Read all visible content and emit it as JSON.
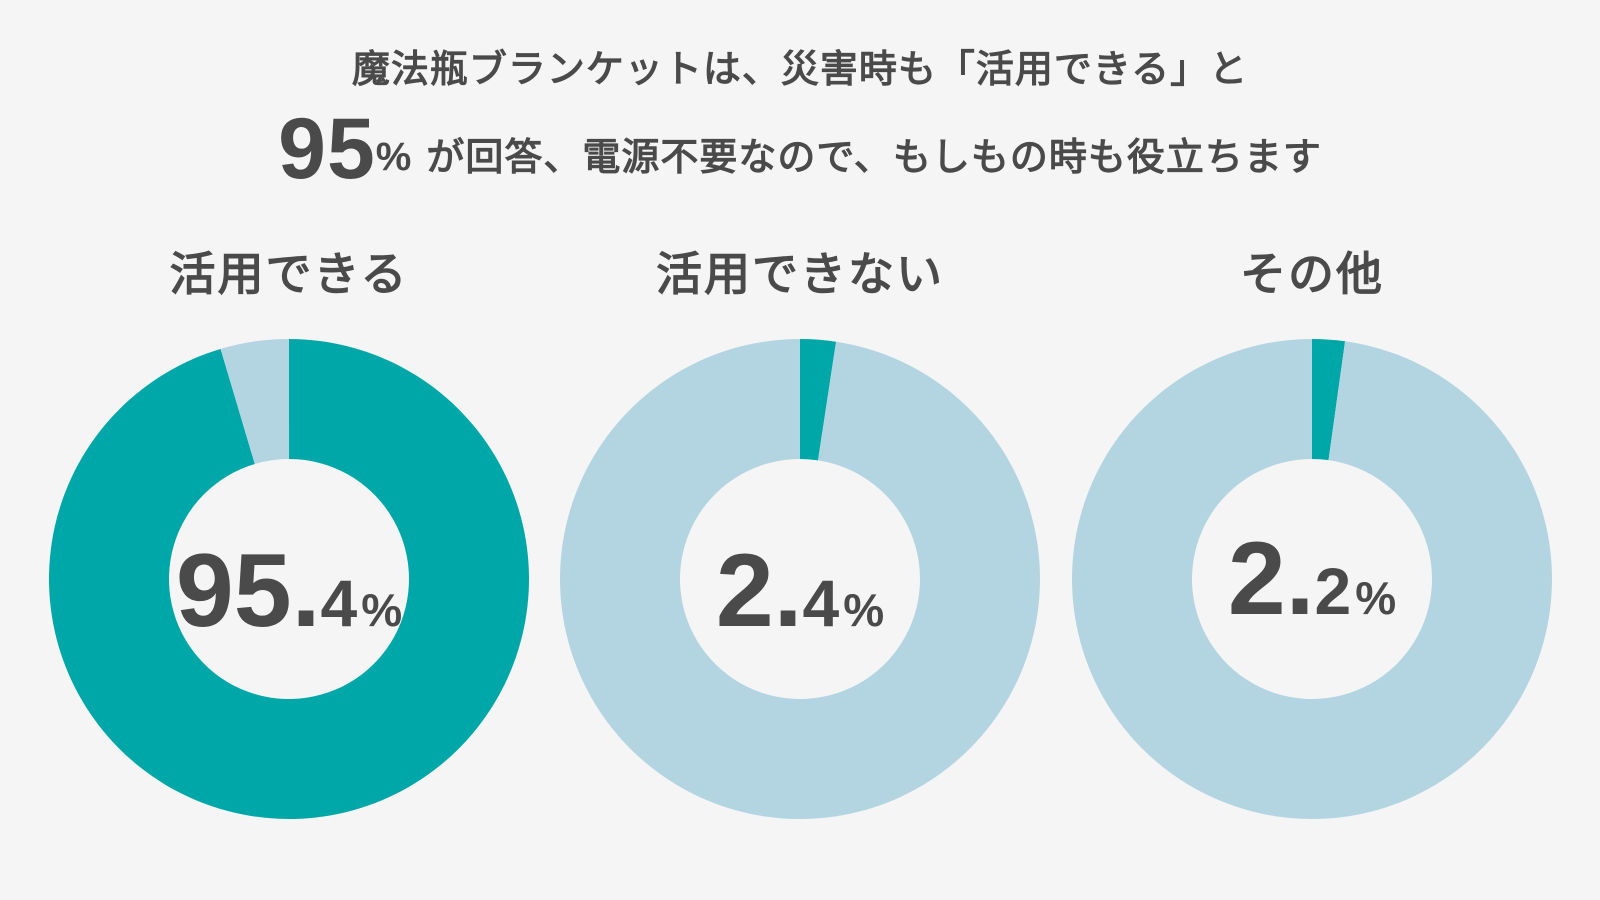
{
  "headline": {
    "line1": "魔法瓶ブランケットは、災害時も「活用できる」と",
    "big_number": "95",
    "big_unit": "%",
    "line2_rest": "が回答、電源不要なので、もしもの時も役立ちます"
  },
  "colors": {
    "accent": "#00a7a8",
    "remainder": "#b3d5e1",
    "text": "#4a4a4a",
    "background": "#f5f5f5"
  },
  "chart_data": [
    {
      "type": "pie",
      "title": "活用できる",
      "value": 95.4,
      "remainder": 4.6,
      "label_int": "95.",
      "label_dec": "4",
      "unit": "%"
    },
    {
      "type": "pie",
      "title": "活用できない",
      "value": 2.4,
      "remainder": 97.6,
      "label_int": "2.",
      "label_dec": "4",
      "unit": "%"
    },
    {
      "type": "pie",
      "title": "その他",
      "value": 2.2,
      "remainder": 97.8,
      "label_int": "2.",
      "label_dec": "2",
      "unit": "%"
    }
  ]
}
